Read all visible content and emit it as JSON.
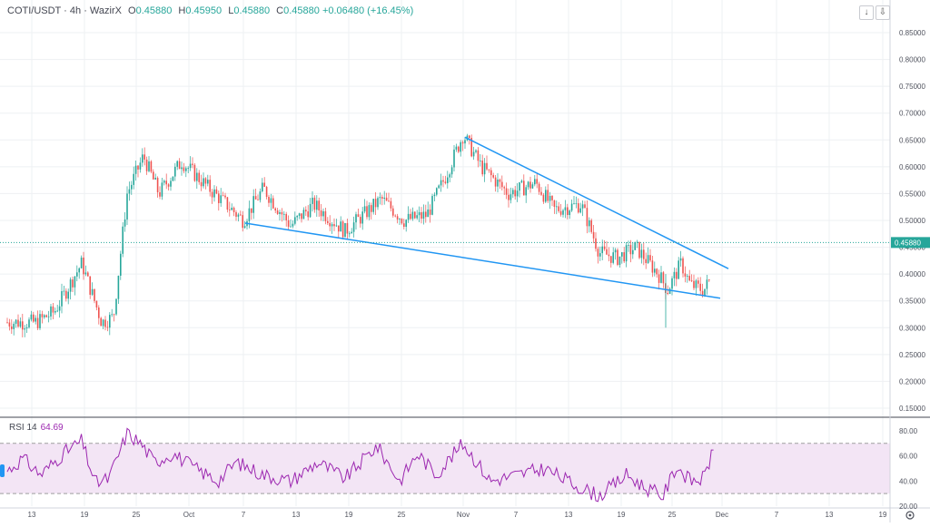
{
  "legend": {
    "symbol": "COTI/USDT",
    "interval": "4h",
    "exchange": "WazirX",
    "open_label": "O",
    "open": "0.45880",
    "high_label": "H",
    "high": "0.45950",
    "low_label": "L",
    "low": "0.45880",
    "close_label": "C",
    "close": "0.45880",
    "change": "+0.06480 (+16.45%)"
  },
  "rsi": {
    "label": "RSI 14",
    "value": "64.69"
  },
  "price_badge": "0.45880",
  "colors": {
    "up": "#26a69a",
    "down": "#ef5350",
    "trendline": "#2196f3",
    "rsi_line": "#9c27b0",
    "rsi_band": "#f3e5f5"
  },
  "icons": {
    "down_arrow": "arrow-down-icon",
    "settings": "gear-icon"
  },
  "chart_data": [
    {
      "type": "candlestick",
      "ylim": [
        0.1,
        0.85
      ],
      "y_ticks": [
        "0.85000",
        "0.80000",
        "0.75000",
        "0.70000",
        "0.65000",
        "0.60000",
        "0.55000",
        "0.50000",
        "0.45000",
        "0.40000",
        "0.35000",
        "0.30000",
        "0.25000",
        "0.20000",
        "0.15000"
      ],
      "x_ticks": [
        "13",
        "19",
        "25",
        "Oct",
        "7",
        "13",
        "19",
        "25",
        "Nov",
        "7",
        "13",
        "19",
        "25",
        "Dec",
        "7",
        "13",
        "19"
      ],
      "last_price": 0.4588,
      "series": [
        {
          "x": "13",
          "y": 0.31
        },
        {
          "x": "19",
          "y": 0.42
        },
        {
          "x": "22",
          "y": 0.31
        },
        {
          "x": "25",
          "y": 0.62
        },
        {
          "x": "Oct",
          "y": 0.61
        },
        {
          "x": "7",
          "y": 0.5
        },
        {
          "x": "10",
          "y": 0.56
        },
        {
          "x": "13",
          "y": 0.49
        },
        {
          "x": "19",
          "y": 0.48
        },
        {
          "x": "22",
          "y": 0.54
        },
        {
          "x": "25",
          "y": 0.5
        },
        {
          "x": "29",
          "y": 0.59
        },
        {
          "x": "Nov",
          "y": 0.66
        },
        {
          "x": "7",
          "y": 0.56
        },
        {
          "x": "13",
          "y": 0.53
        },
        {
          "x": "19",
          "y": 0.42
        },
        {
          "x": "25",
          "y": 0.39
        },
        {
          "x": "28",
          "y": 0.36
        },
        {
          "x": "29",
          "y": 0.4588
        }
      ]
    },
    {
      "type": "line",
      "title": "RSI 14",
      "ylim": [
        20,
        85
      ],
      "y_ticks": [
        "80.00",
        "60.00",
        "40.00",
        "20.00"
      ],
      "bands": [
        30,
        70
      ],
      "last_value": 64.69
    }
  ]
}
